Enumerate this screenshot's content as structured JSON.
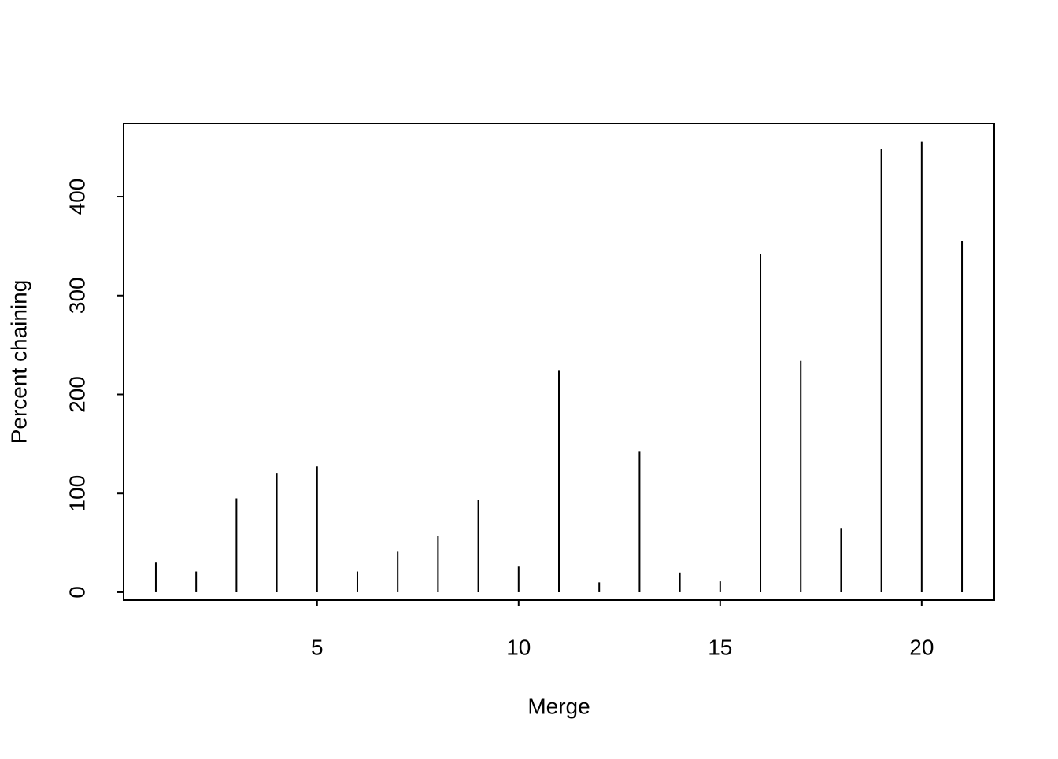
{
  "chart_data": {
    "type": "bar",
    "x_label": "Merge",
    "y_label": "Percent chaining",
    "x": [
      1,
      2,
      3,
      4,
      5,
      6,
      7,
      8,
      9,
      10,
      11,
      12,
      13,
      14,
      15,
      16,
      17,
      18,
      19,
      20,
      21
    ],
    "values": [
      30,
      21,
      95,
      120,
      127,
      21,
      41,
      57,
      93,
      26,
      224,
      10,
      142,
      20,
      11,
      342,
      234,
      65,
      448,
      456,
      355
    ],
    "color": "#000000",
    "xlim": [
      0.2,
      21.8
    ],
    "ylim": [
      -8,
      474
    ],
    "xticks": [
      5,
      10,
      15,
      20
    ],
    "yticks": [
      0,
      100,
      200,
      300,
      400
    ]
  }
}
